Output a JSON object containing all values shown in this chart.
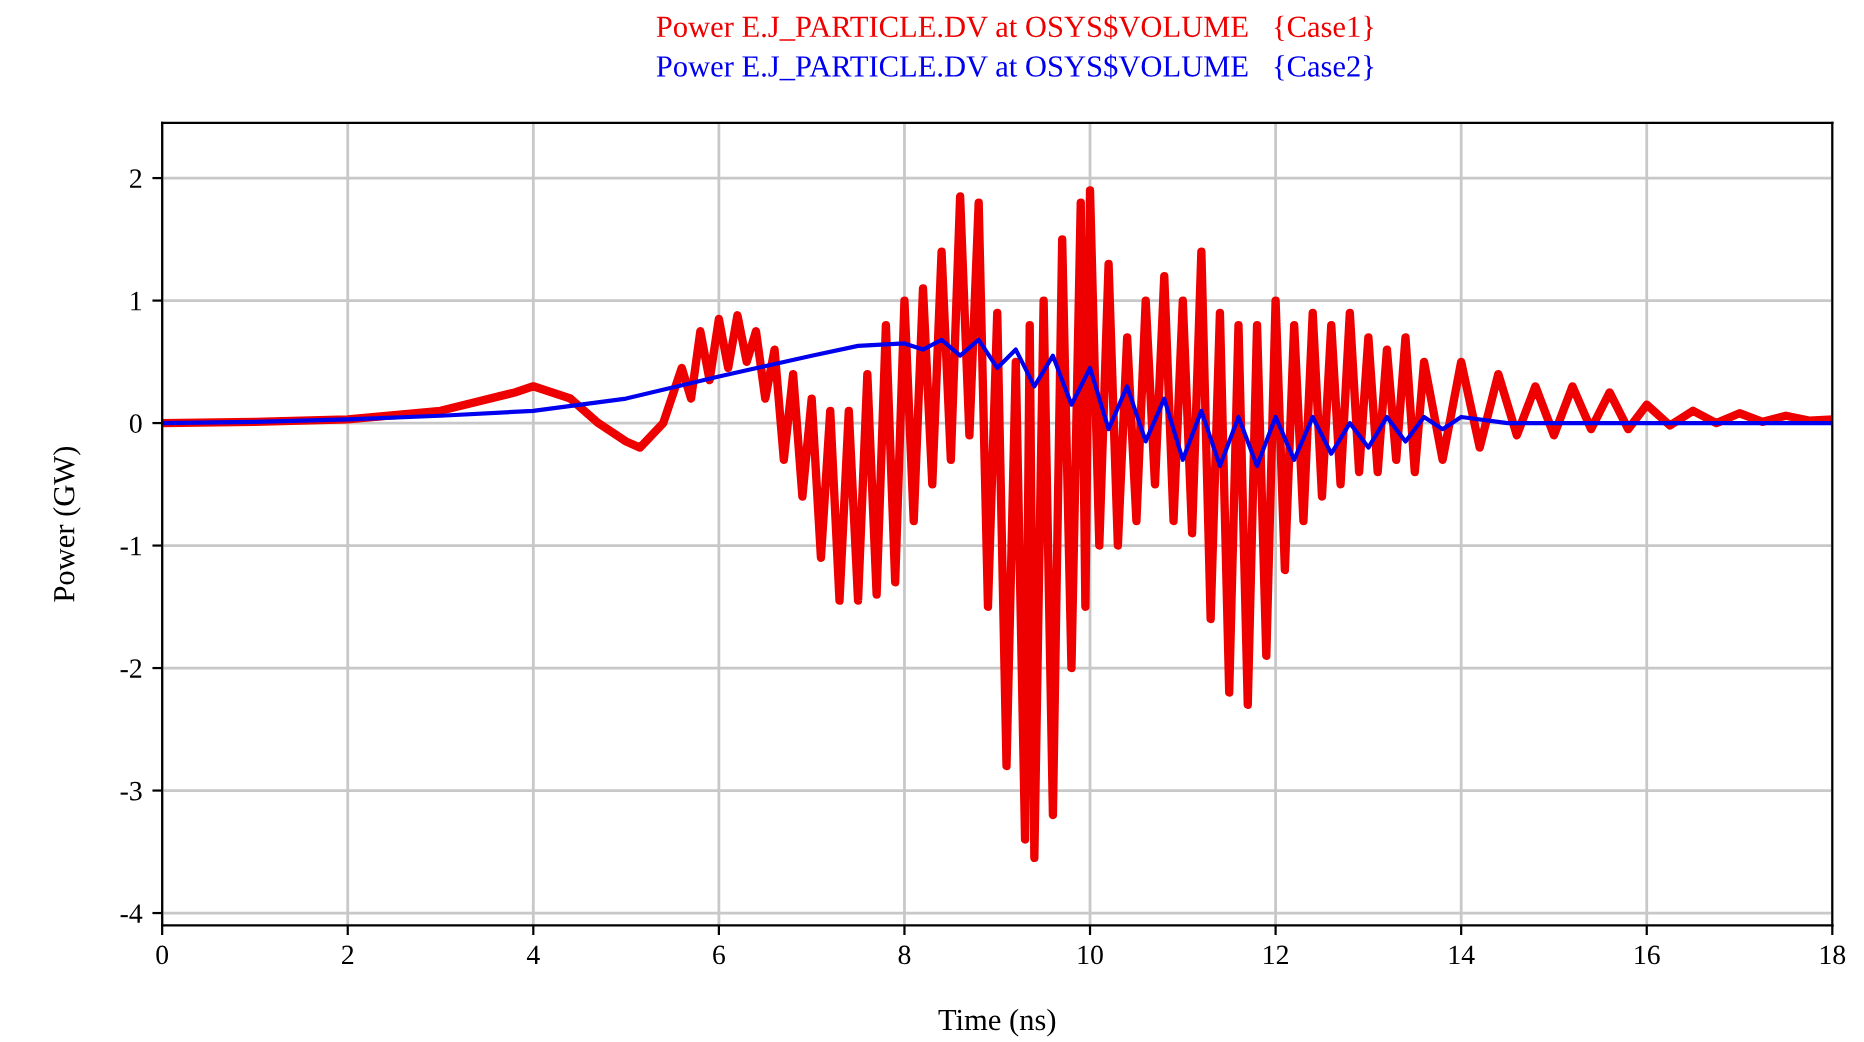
{
  "chart_data": {
    "type": "line",
    "xlabel": "Time (ns)",
    "ylabel": "Power (GW)",
    "xlim": [
      0,
      18
    ],
    "ylim": [
      -4.1,
      2.45
    ],
    "xticks": [
      0,
      2,
      4,
      6,
      8,
      10,
      12,
      14,
      16,
      18
    ],
    "yticks": [
      -4,
      -3,
      -2,
      -1,
      0,
      1,
      2
    ],
    "grid": true,
    "legend": "top",
    "series": [
      {
        "name": "Power E.J_PARTICLE.DV at OSYS$VOLUME   {Case1}",
        "color": "#ee0000",
        "x": [
          0,
          1,
          2,
          3,
          3.8,
          4.0,
          4.4,
          4.7,
          5.0,
          5.15,
          5.4,
          5.6,
          5.7,
          5.8,
          5.9,
          6.0,
          6.1,
          6.2,
          6.3,
          6.4,
          6.5,
          6.6,
          6.7,
          6.8,
          6.9,
          7.0,
          7.1,
          7.2,
          7.3,
          7.4,
          7.5,
          7.6,
          7.7,
          7.8,
          7.9,
          8.0,
          8.1,
          8.2,
          8.3,
          8.4,
          8.5,
          8.6,
          8.7,
          8.8,
          8.9,
          9.0,
          9.1,
          9.2,
          9.3,
          9.35,
          9.4,
          9.5,
          9.6,
          9.7,
          9.8,
          9.9,
          9.95,
          10.0,
          10.1,
          10.2,
          10.3,
          10.4,
          10.5,
          10.6,
          10.7,
          10.8,
          10.9,
          11.0,
          11.1,
          11.2,
          11.3,
          11.4,
          11.5,
          11.6,
          11.7,
          11.8,
          11.9,
          12.0,
          12.1,
          12.2,
          12.3,
          12.4,
          12.5,
          12.6,
          12.7,
          12.8,
          12.9,
          13.0,
          13.1,
          13.2,
          13.3,
          13.4,
          13.5,
          13.6,
          13.8,
          14.0,
          14.2,
          14.4,
          14.6,
          14.8,
          15.0,
          15.2,
          15.4,
          15.6,
          15.8,
          16.0,
          16.25,
          16.5,
          16.75,
          17.0,
          17.25,
          17.5,
          17.75,
          18.0
        ],
        "values": [
          0,
          0.01,
          0.03,
          0.1,
          0.25,
          0.3,
          0.2,
          0.0,
          -0.15,
          -0.2,
          0.0,
          0.45,
          0.2,
          0.75,
          0.35,
          0.85,
          0.45,
          0.88,
          0.5,
          0.75,
          0.2,
          0.6,
          -0.3,
          0.4,
          -0.6,
          0.2,
          -1.1,
          0.1,
          -1.45,
          0.1,
          -1.45,
          0.4,
          -1.4,
          0.8,
          -1.3,
          1.0,
          -0.8,
          1.1,
          -0.5,
          1.4,
          -0.3,
          1.85,
          -0.1,
          1.8,
          -1.5,
          0.9,
          -2.8,
          0.5,
          -3.4,
          0.8,
          -3.55,
          1.0,
          -3.2,
          1.5,
          -2.0,
          1.8,
          -1.5,
          1.9,
          -1.0,
          1.3,
          -1.0,
          0.7,
          -0.8,
          1.0,
          -0.5,
          1.2,
          -0.8,
          1.0,
          -0.9,
          1.4,
          -1.6,
          0.9,
          -2.2,
          0.8,
          -2.3,
          0.8,
          -1.9,
          1.0,
          -1.2,
          0.8,
          -0.8,
          0.9,
          -0.6,
          0.8,
          -0.5,
          0.9,
          -0.4,
          0.7,
          -0.4,
          0.6,
          -0.3,
          0.7,
          -0.4,
          0.5,
          -0.3,
          0.5,
          -0.2,
          0.4,
          -0.1,
          0.3,
          -0.1,
          0.3,
          -0.05,
          0.25,
          -0.05,
          0.15,
          -0.02,
          0.1,
          0.0,
          0.08,
          0.01,
          0.06,
          0.02,
          0.03
        ]
      },
      {
        "name": "Power E.J_PARTICLE.DV at OSYS$VOLUME   {Case2}",
        "color": "#0000ee",
        "x": [
          0,
          1,
          2,
          3,
          4,
          5,
          6,
          7,
          7.5,
          8,
          8.2,
          8.4,
          8.6,
          8.8,
          9.0,
          9.2,
          9.4,
          9.6,
          9.8,
          10.0,
          10.2,
          10.4,
          10.6,
          10.8,
          11.0,
          11.2,
          11.4,
          11.6,
          11.8,
          12.0,
          12.2,
          12.4,
          12.6,
          12.8,
          13.0,
          13.2,
          13.4,
          13.6,
          13.8,
          14.0,
          14.5,
          15,
          18
        ],
        "values": [
          0,
          0.01,
          0.03,
          0.06,
          0.1,
          0.2,
          0.38,
          0.55,
          0.63,
          0.65,
          0.6,
          0.68,
          0.55,
          0.68,
          0.45,
          0.6,
          0.3,
          0.55,
          0.15,
          0.45,
          -0.05,
          0.3,
          -0.15,
          0.2,
          -0.3,
          0.1,
          -0.35,
          0.05,
          -0.35,
          0.05,
          -0.3,
          0.05,
          -0.25,
          0.0,
          -0.2,
          0.05,
          -0.15,
          0.05,
          -0.05,
          0.05,
          0.0,
          0.0,
          0.0
        ]
      }
    ]
  }
}
